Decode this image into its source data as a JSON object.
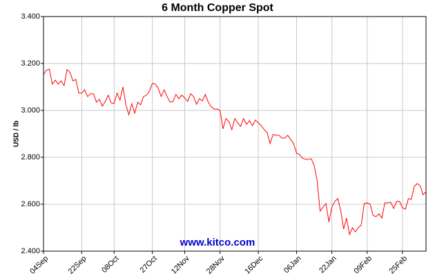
{
  "chart_data": {
    "type": "line",
    "title": "6 Month Copper Spot",
    "y_label": "USD / lb",
    "annotation": "www.kitco.com",
    "color": "#ff0000",
    "grid": true,
    "ylim": [
      2.4,
      3.4
    ],
    "yticks": [
      {
        "value": 2.4,
        "label": "2.400"
      },
      {
        "value": 2.6,
        "label": "2.600"
      },
      {
        "value": 2.8,
        "label": "2.800"
      },
      {
        "value": 3.0,
        "label": "3.000"
      },
      {
        "value": 3.2,
        "label": "3.200"
      },
      {
        "value": 3.4,
        "label": "3.400"
      }
    ],
    "categories": [
      "04Sep",
      null,
      null,
      null,
      null,
      null,
      null,
      null,
      null,
      null,
      null,
      null,
      null,
      "22Sep",
      null,
      null,
      null,
      null,
      null,
      null,
      null,
      null,
      null,
      null,
      "08Oct",
      null,
      null,
      null,
      null,
      null,
      null,
      null,
      null,
      null,
      null,
      null,
      null,
      "27Oct",
      null,
      null,
      null,
      null,
      null,
      null,
      null,
      null,
      null,
      null,
      "12Nov",
      null,
      null,
      null,
      null,
      null,
      null,
      null,
      null,
      null,
      null,
      null,
      "28Nov",
      null,
      null,
      null,
      null,
      null,
      null,
      null,
      null,
      null,
      null,
      null,
      null,
      "16Dec",
      null,
      null,
      null,
      null,
      null,
      null,
      null,
      null,
      null,
      null,
      null,
      null,
      "06Jan",
      null,
      null,
      null,
      null,
      null,
      null,
      null,
      null,
      null,
      null,
      null,
      "22Jan",
      null,
      null,
      null,
      null,
      null,
      null,
      null,
      null,
      null,
      null,
      null,
      "09Feb",
      null,
      null,
      null,
      null,
      null,
      null,
      null,
      null,
      null,
      null,
      null,
      "25Feb",
      null,
      null,
      null,
      null,
      null,
      null,
      null,
      null
    ],
    "values": [
      3.153,
      3.171,
      3.176,
      3.112,
      3.129,
      3.112,
      3.126,
      3.106,
      3.174,
      3.162,
      3.126,
      3.132,
      3.074,
      3.074,
      3.088,
      3.059,
      3.071,
      3.071,
      3.035,
      3.047,
      3.018,
      3.038,
      3.065,
      3.032,
      3.029,
      3.074,
      3.044,
      3.1,
      3.024,
      2.982,
      3.029,
      2.988,
      3.035,
      3.024,
      3.059,
      3.065,
      3.082,
      3.115,
      3.112,
      3.094,
      3.059,
      3.088,
      3.059,
      3.035,
      3.038,
      3.068,
      3.05,
      3.065,
      3.053,
      3.038,
      3.071,
      3.059,
      3.026,
      3.05,
      3.041,
      3.068,
      3.035,
      3.015,
      3.006,
      3.006,
      3.0,
      2.921,
      2.965,
      2.953,
      2.918,
      2.965,
      2.947,
      2.932,
      2.965,
      2.941,
      2.956,
      2.935,
      2.959,
      2.947,
      2.935,
      2.918,
      2.906,
      2.859,
      2.897,
      2.894,
      2.894,
      2.882,
      2.882,
      2.894,
      2.876,
      2.859,
      2.818,
      2.812,
      2.797,
      2.791,
      2.791,
      2.794,
      2.765,
      2.7,
      2.571,
      2.588,
      2.603,
      2.524,
      2.588,
      2.612,
      2.624,
      2.574,
      2.494,
      2.541,
      2.471,
      2.5,
      2.482,
      2.5,
      2.512,
      2.603,
      2.606,
      2.6,
      2.553,
      2.547,
      2.559,
      2.541,
      2.606,
      2.606,
      2.609,
      2.582,
      2.612,
      2.612,
      2.585,
      2.579,
      2.624,
      2.621,
      2.676,
      2.688,
      2.679,
      2.641,
      2.653
    ]
  }
}
